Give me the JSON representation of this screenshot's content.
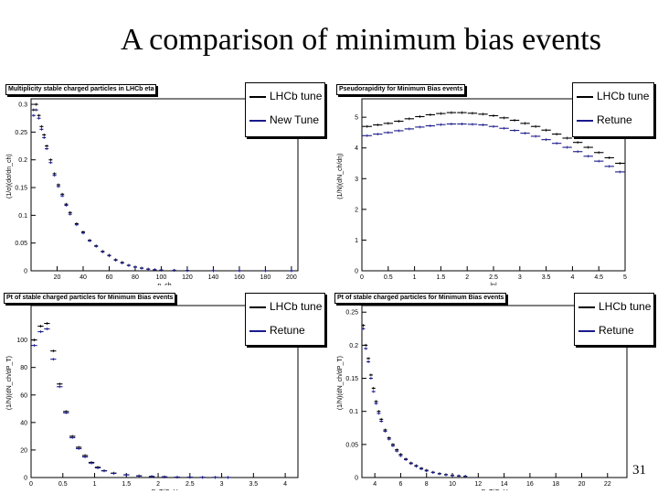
{
  "slide": {
    "title": "A comparison of minimum bias events",
    "number": "31"
  },
  "colors": {
    "series1": "#000000",
    "series2": "#1a1a8c"
  },
  "chart_data": [
    {
      "type": "scatter",
      "title": "Multiplicity stable charged particles in LHCb eta",
      "xlabel": "n_ch",
      "ylabel": "(1/σ)(dσ/dn_ch)",
      "xlim": [
        0,
        205
      ],
      "ylim": [
        0,
        0.31
      ],
      "xticks": [
        "20",
        "40",
        "60",
        "80",
        "100",
        "120",
        "140",
        "160",
        "180",
        "200"
      ],
      "yticks": [
        "0",
        "0.05",
        "0.1",
        "0.15",
        "0.2",
        "0.25",
        "0.3"
      ],
      "legend": "top-right",
      "series": [
        {
          "name": "LHCb tune",
          "x": [
            2,
            4,
            6,
            8,
            10,
            12,
            15,
            18,
            21,
            24,
            27,
            30,
            35,
            40,
            45,
            50,
            55,
            60,
            65,
            70,
            75,
            80,
            85,
            90,
            95,
            100,
            110,
            120,
            140,
            160,
            180,
            200
          ],
          "y": [
            0.29,
            0.3,
            0.28,
            0.26,
            0.245,
            0.225,
            0.2,
            0.175,
            0.155,
            0.138,
            0.12,
            0.105,
            0.085,
            0.07,
            0.055,
            0.045,
            0.035,
            0.028,
            0.02,
            0.015,
            0.01,
            0.007,
            0.005,
            0.003,
            0.002,
            0.0015,
            0.001,
            0.0005,
            0.0002,
            0.0001,
            0,
            0
          ]
        },
        {
          "name": "New Tune",
          "x": [
            2,
            4,
            6,
            8,
            10,
            12,
            15,
            18,
            21,
            24,
            27,
            30,
            35,
            40,
            45,
            50,
            55,
            60,
            65,
            70,
            75,
            80,
            85,
            90,
            95,
            100,
            110,
            120,
            140,
            160,
            180,
            200
          ],
          "y": [
            0.28,
            0.29,
            0.275,
            0.255,
            0.24,
            0.22,
            0.195,
            0.172,
            0.152,
            0.135,
            0.118,
            0.102,
            0.083,
            0.068,
            0.054,
            0.044,
            0.034,
            0.027,
            0.019,
            0.014,
            0.0095,
            0.0065,
            0.0045,
            0.0028,
            0.0018,
            0.0012,
            0.0008,
            0.0004,
            0.0001,
            0,
            0,
            0
          ]
        }
      ]
    },
    {
      "type": "scatter",
      "title": "Pseudorapidity for Minimum Bias events",
      "xlabel": "|η|",
      "ylabel": "(1/N)(dN_ch/dη)",
      "xlim": [
        0,
        5
      ],
      "ylim": [
        0,
        5.6
      ],
      "xticks": [
        "0",
        "0.5",
        "1",
        "1.5",
        "2",
        "2.5",
        "3",
        "3.5",
        "4",
        "4.5",
        "5"
      ],
      "yticks": [
        "0",
        "1",
        "2",
        "3",
        "4",
        "5"
      ],
      "legend": "top-right",
      "series": [
        {
          "name": "LHCb tune",
          "x": [
            0.1,
            0.3,
            0.5,
            0.7,
            0.9,
            1.1,
            1.3,
            1.5,
            1.7,
            1.9,
            2.1,
            2.3,
            2.5,
            2.7,
            2.9,
            3.1,
            3.3,
            3.5,
            3.7,
            3.9,
            4.1,
            4.3,
            4.5,
            4.7,
            4.9
          ],
          "y": [
            4.7,
            4.75,
            4.8,
            4.87,
            4.95,
            5.02,
            5.08,
            5.12,
            5.15,
            5.15,
            5.13,
            5.1,
            5.05,
            4.98,
            4.9,
            4.8,
            4.7,
            4.58,
            4.45,
            4.32,
            4.18,
            4.02,
            3.85,
            3.68,
            3.5
          ]
        },
        {
          "name": "Retune",
          "x": [
            0.1,
            0.3,
            0.5,
            0.7,
            0.9,
            1.1,
            1.3,
            1.5,
            1.7,
            1.9,
            2.1,
            2.3,
            2.5,
            2.7,
            2.9,
            3.1,
            3.3,
            3.5,
            3.7,
            3.9,
            4.1,
            4.3,
            4.5,
            4.7,
            4.9
          ],
          "y": [
            4.4,
            4.45,
            4.5,
            4.56,
            4.62,
            4.68,
            4.72,
            4.76,
            4.78,
            4.78,
            4.77,
            4.75,
            4.7,
            4.64,
            4.57,
            4.48,
            4.38,
            4.27,
            4.15,
            4.02,
            3.88,
            3.73,
            3.57,
            3.4,
            3.22
          ]
        }
      ]
    },
    {
      "type": "scatter",
      "title": "Pt of stable charged particles for Minimum Bias events",
      "xlabel": "P_T/GeV",
      "ylabel": "(1/N)(dN_ch/dP_T)",
      "xlim": [
        0,
        4.2
      ],
      "ylim": [
        0,
        125
      ],
      "xticks": [
        "0",
        "0.5",
        "1",
        "1.5",
        "2",
        "2.5",
        "3",
        "3.5",
        "4"
      ],
      "yticks": [
        "0",
        "20",
        "40",
        "60",
        "80",
        "100"
      ],
      "legend": "top-right",
      "series": [
        {
          "name": "LHCb tune",
          "x": [
            0.05,
            0.15,
            0.25,
            0.35,
            0.45,
            0.55,
            0.65,
            0.75,
            0.85,
            0.95,
            1.05,
            1.15,
            1.3,
            1.5,
            1.7,
            1.9,
            2.1,
            2.3,
            2.5,
            2.7,
            2.9,
            3.1
          ],
          "y": [
            100,
            110,
            112,
            92,
            68,
            48,
            30,
            22,
            16,
            11,
            7.5,
            5,
            3.2,
            2,
            1.2,
            0.8,
            0.5,
            0.3,
            0.2,
            0.1,
            0.1,
            0.05
          ]
        },
        {
          "name": "Retune",
          "x": [
            0.05,
            0.15,
            0.25,
            0.35,
            0.45,
            0.55,
            0.65,
            0.75,
            0.85,
            0.95,
            1.05,
            1.15,
            1.3,
            1.5,
            1.7,
            1.9,
            2.1,
            2.3,
            2.5,
            2.7,
            2.9,
            3.1
          ],
          "y": [
            96,
            106,
            108,
            86,
            66,
            47,
            29,
            21,
            15,
            10.5,
            7,
            4.8,
            3,
            1.9,
            1.1,
            0.7,
            0.45,
            0.28,
            0.18,
            0.1,
            0.08,
            0.04
          ]
        }
      ]
    },
    {
      "type": "scatter",
      "title": "Pt of stable charged particles for Minimum Bias events",
      "xlabel": "P_T/GeV",
      "ylabel": "(1/N)(dN_ch/dP_T)",
      "xlim": [
        3,
        23.5
      ],
      "ylim": [
        0,
        0.26
      ],
      "xticks": [
        "4",
        "6",
        "8",
        "10",
        "12",
        "14",
        "16",
        "18",
        "20",
        "22"
      ],
      "yticks": [
        "0",
        "0.05",
        "0.1",
        "0.15",
        "0.2",
        "0.25"
      ],
      "legend": "top-right",
      "series": [
        {
          "name": "LHCb tune",
          "x": [
            3.1,
            3.3,
            3.5,
            3.7,
            3.9,
            4.1,
            4.3,
            4.5,
            4.8,
            5.1,
            5.4,
            5.7,
            6,
            6.4,
            6.8,
            7.2,
            7.6,
            8,
            8.5,
            9,
            9.5,
            10,
            10.5,
            11
          ],
          "y": [
            0.23,
            0.2,
            0.18,
            0.155,
            0.135,
            0.115,
            0.1,
            0.088,
            0.072,
            0.06,
            0.05,
            0.042,
            0.035,
            0.028,
            0.022,
            0.018,
            0.014,
            0.011,
            0.008,
            0.006,
            0.0045,
            0.0035,
            0.0025,
            0.002
          ]
        },
        {
          "name": "Retune",
          "x": [
            3.1,
            3.3,
            3.5,
            3.7,
            3.9,
            4.1,
            4.3,
            4.5,
            4.8,
            5.1,
            5.4,
            5.7,
            6,
            6.4,
            6.8,
            7.2,
            7.6,
            8,
            8.5,
            9,
            9.5,
            10,
            10.5,
            11
          ],
          "y": [
            0.225,
            0.195,
            0.175,
            0.15,
            0.13,
            0.112,
            0.097,
            0.085,
            0.07,
            0.058,
            0.048,
            0.04,
            0.033,
            0.027,
            0.021,
            0.017,
            0.013,
            0.01,
            0.0075,
            0.0055,
            0.004,
            0.003,
            0.0022,
            0.0018
          ]
        }
      ]
    }
  ]
}
